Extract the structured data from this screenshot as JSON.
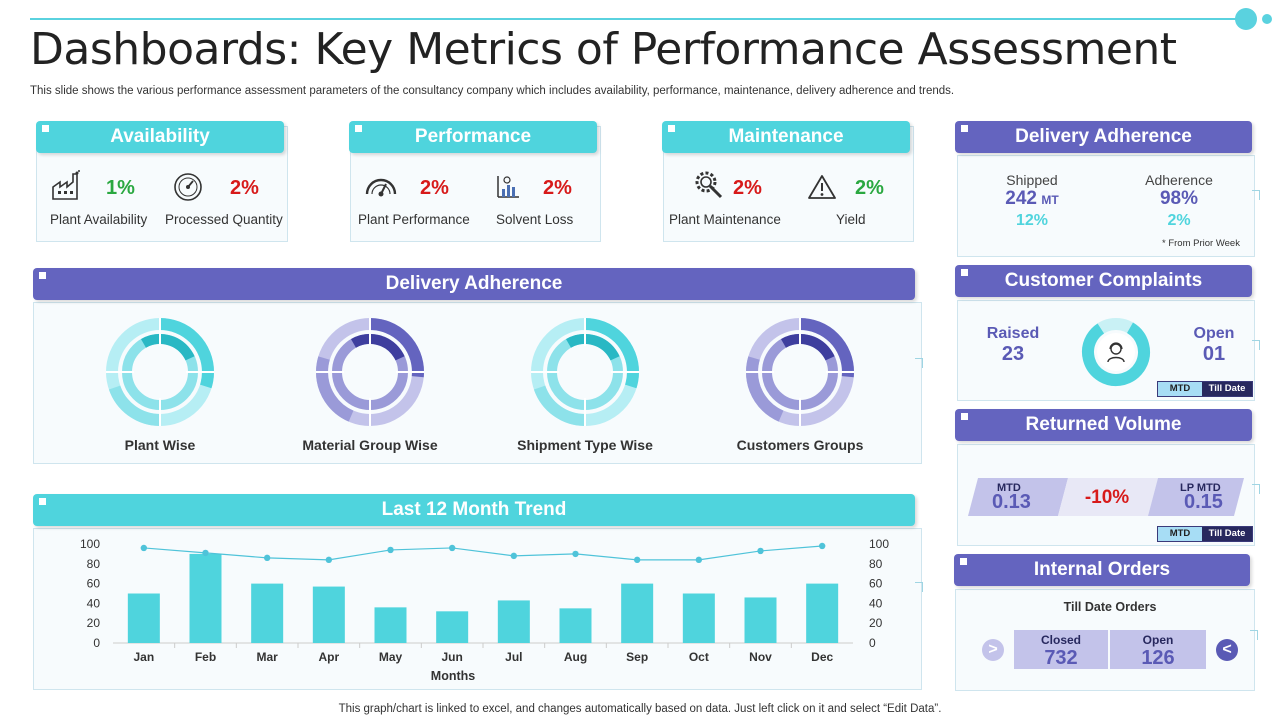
{
  "title": "Dashboards: Key Metrics of Performance Assessment",
  "subtitle": "This slide shows the various performance assessment parameters of the consultancy company which includes availability, performance, maintenance, delivery adherence and trends.",
  "footer": "This graph/chart is linked to excel, and changes automatically based on data. Just left click on it and select “Edit Data”.",
  "availability": {
    "header": "Availability",
    "items": [
      {
        "value": "1%",
        "label": "Plant Availability",
        "icon": "factory-icon",
        "color": "#2aa840"
      },
      {
        "value": "2%",
        "label": "Processed Quantity",
        "icon": "gauge-icon",
        "color": "#d71a1a"
      }
    ]
  },
  "performance": {
    "header": "Performance",
    "items": [
      {
        "value": "2%",
        "label": "Plant Performance",
        "icon": "speedometer-icon",
        "color": "#d71a1a"
      },
      {
        "value": "2%",
        "label": "Solvent  Loss",
        "icon": "plant-chart-icon",
        "color": "#d71a1a"
      }
    ]
  },
  "maintenance": {
    "header": "Maintenance",
    "items": [
      {
        "value": "2%",
        "label": "Plant Maintenance",
        "icon": "gear-wrench-icon",
        "color": "#d71a1a"
      },
      {
        "value": "2%",
        "label": "Yield",
        "icon": "warning-icon",
        "color": "#2aa840"
      }
    ]
  },
  "delivery_adherence_main": {
    "header": "Delivery Adherence",
    "donuts": [
      {
        "label": "Plant Wise",
        "palette": "teal"
      },
      {
        "label": "Material Group Wise",
        "palette": "purple"
      },
      {
        "label": "Shipment Type Wise",
        "palette": "teal"
      },
      {
        "label": "Customers Groups",
        "palette": "purple"
      }
    ]
  },
  "trend": {
    "header": "Last 12 Month Trend"
  },
  "delivery_adherence_side": {
    "header": "Delivery Adherence",
    "shipped_label": "Shipped",
    "shipped_value": "242",
    "shipped_unit": "MT",
    "shipped_pct": "12%",
    "adherence_label": "Adherence",
    "adherence_value": "98%",
    "adherence_pct": "2%",
    "note": "* From Prior Week"
  },
  "customer_complaints": {
    "header": "Customer Complaints",
    "raised_label": "Raised",
    "raised_value": "23",
    "open_label": "Open",
    "open_value": "01",
    "toggle_a": "MTD",
    "toggle_b": "Till Date"
  },
  "returned_volume": {
    "header": "Returned Volume",
    "mtd_label": "MTD",
    "mtd_value": "0.13",
    "change": "-10%",
    "lp_label": "LP  MTD",
    "lp_value": "0.15",
    "toggle_a": "MTD",
    "toggle_b": "Till Date"
  },
  "internal_orders": {
    "header": "Internal Orders",
    "subheader": "Till Date Orders",
    "closed_label": "Closed",
    "closed_value": "732",
    "open_label": "Open",
    "open_value": "126"
  },
  "colors": {
    "teal": "#4fd4dd",
    "purple": "#6464bf",
    "red": "#d71a1a",
    "green": "#2aa840"
  },
  "chart_data": {
    "type": "bar",
    "title": "Last 12 Month Trend",
    "xlabel": "Months",
    "ylabel": "",
    "categories": [
      "Jan",
      "Feb",
      "Mar",
      "Apr",
      "May",
      "Jun",
      "Jul",
      "Aug",
      "Sep",
      "Oct",
      "Nov",
      "Dec"
    ],
    "series": [
      {
        "name": "Bars",
        "type": "bar",
        "axis": "left",
        "values": [
          50,
          90,
          60,
          57,
          36,
          32,
          43,
          35,
          60,
          50,
          46,
          60
        ]
      },
      {
        "name": "Line",
        "type": "line",
        "axis": "right",
        "values": [
          96,
          91,
          86,
          84,
          94,
          96,
          88,
          90,
          84,
          84,
          93,
          98
        ]
      }
    ],
    "ylim": [
      0,
      100
    ],
    "y2lim": [
      0,
      100
    ],
    "yticks": [
      "0",
      "20",
      "40",
      "60",
      "80",
      "100"
    ],
    "y2ticks": [
      "0",
      "20",
      "40",
      "60",
      "80",
      "100"
    ]
  }
}
